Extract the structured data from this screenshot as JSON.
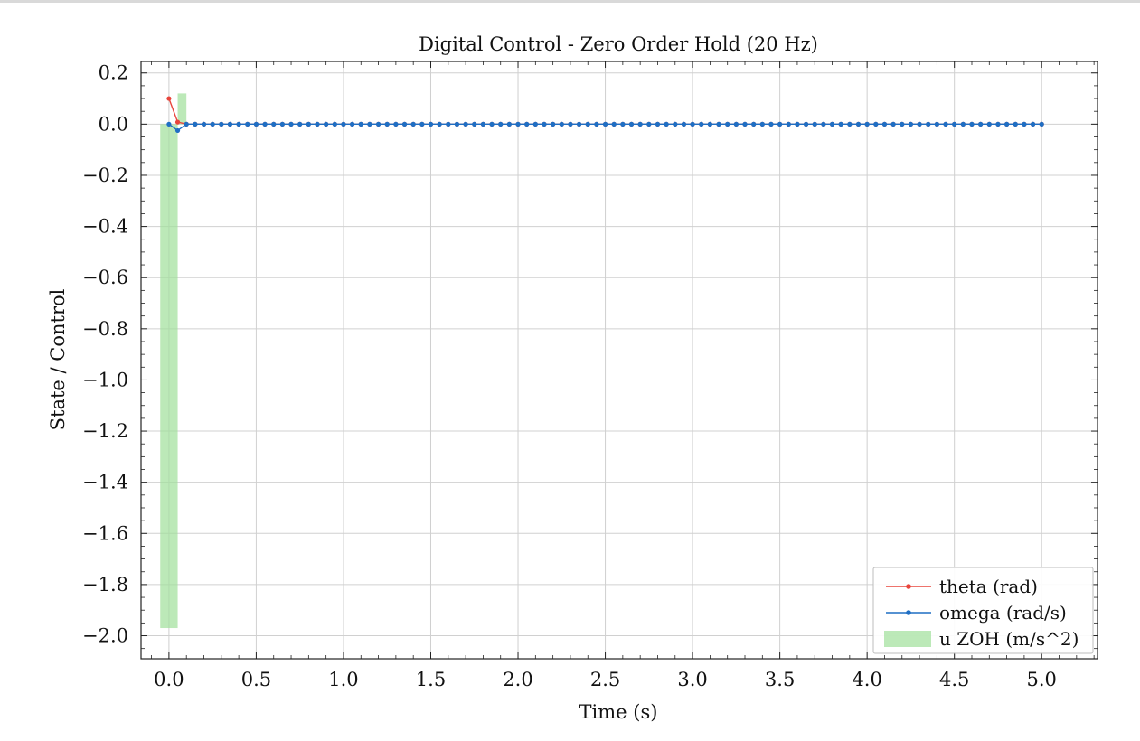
{
  "chart_data": {
    "type": "line",
    "title": "Digital Control - Zero Order Hold (20 Hz)",
    "xlabel": "Time (s)",
    "ylabel": "State / Control",
    "xlim": [
      -0.16,
      5.32
    ],
    "ylim": [
      -2.09,
      0.245
    ],
    "xticks": [
      0.0,
      0.5,
      1.0,
      1.5,
      2.0,
      2.5,
      3.0,
      3.5,
      4.0,
      4.5,
      5.0
    ],
    "xtick_labels": [
      "0.0",
      "0.5",
      "1.0",
      "1.5",
      "2.0",
      "2.5",
      "3.0",
      "3.5",
      "4.0",
      "4.5",
      "5.0"
    ],
    "yticks": [
      0.2,
      0.0,
      -0.2,
      -0.4,
      -0.6,
      -0.8,
      -1.0,
      -1.2,
      -1.4,
      -1.6,
      -1.8,
      -2.0
    ],
    "ytick_labels": [
      "0.2",
      "0.0",
      "−0.2",
      "−0.4",
      "−0.6",
      "−0.8",
      "−1.0",
      "−1.2",
      "−1.4",
      "−1.6",
      "−1.8",
      "−2.0"
    ],
    "grid": true,
    "legend_position": "bottom-right",
    "sample_period": 0.05,
    "t_end": 5.0,
    "series": [
      {
        "name": "theta (rad)",
        "type": "line",
        "color": "#e8453c",
        "marker": "dot",
        "values": [
          0.1,
          0.008,
          0.0
        ],
        "steady_value": 0.0
      },
      {
        "name": "omega (rad/s)",
        "type": "line",
        "color": "#1f6fc4",
        "marker": "dot",
        "values": [
          0.0,
          -0.025,
          0.0
        ],
        "steady_value": 0.0
      },
      {
        "name": "u ZOH (m/s^2)",
        "type": "bar",
        "color": "#9fe09a",
        "bar_width": 0.05,
        "x": [
          -0.025,
          0.025,
          0.075
        ],
        "values": [
          -1.97,
          -1.97,
          0.12
        ]
      }
    ]
  }
}
